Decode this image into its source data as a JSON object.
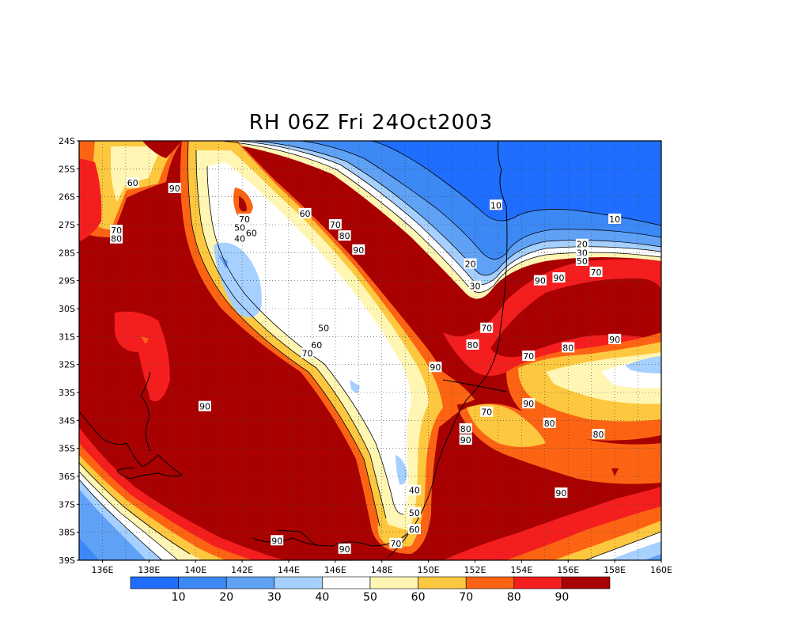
{
  "title": "RH 06Z Fri 24Oct2003",
  "map": {
    "lat_labels": [
      "24S",
      "25S",
      "26S",
      "27S",
      "28S",
      "29S",
      "30S",
      "31S",
      "32S",
      "33S",
      "34S",
      "35S",
      "36S",
      "37S",
      "38S",
      "39S"
    ],
    "lon_labels": [
      "136E",
      "138E",
      "140E",
      "142E",
      "144E",
      "146E",
      "148E",
      "150E",
      "152E",
      "154E",
      "156E",
      "158E",
      "160E"
    ],
    "grid": true,
    "contour_labels": [
      {
        "text": "90",
        "lon": 139.1,
        "lat": -25.7
      },
      {
        "text": "60",
        "lon": 137.3,
        "lat": -25.5
      },
      {
        "text": "70",
        "lon": 136.6,
        "lat": -27.2
      },
      {
        "text": "80",
        "lon": 136.6,
        "lat": -27.5
      },
      {
        "text": "70",
        "lon": 142.1,
        "lat": -26.8
      },
      {
        "text": "60",
        "lon": 144.7,
        "lat": -26.6
      },
      {
        "text": "50",
        "lon": 141.9,
        "lat": -27.1
      },
      {
        "text": "40",
        "lon": 141.9,
        "lat": -27.5
      },
      {
        "text": "60",
        "lon": 142.4,
        "lat": -27.3
      },
      {
        "text": "70",
        "lon": 146.0,
        "lat": -27.0
      },
      {
        "text": "80",
        "lon": 146.4,
        "lat": -27.4
      },
      {
        "text": "90",
        "lon": 147.0,
        "lat": -27.9
      },
      {
        "text": "10",
        "lon": 152.9,
        "lat": -26.3
      },
      {
        "text": "10",
        "lon": 158.0,
        "lat": -26.8
      },
      {
        "text": "20",
        "lon": 151.8,
        "lat": -28.4
      },
      {
        "text": "30",
        "lon": 152.0,
        "lat": -29.2
      },
      {
        "text": "20",
        "lon": 156.6,
        "lat": -27.7
      },
      {
        "text": "30",
        "lon": 156.6,
        "lat": -28.0
      },
      {
        "text": "50",
        "lon": 156.6,
        "lat": -28.3
      },
      {
        "text": "70",
        "lon": 157.2,
        "lat": -28.7
      },
      {
        "text": "90",
        "lon": 155.6,
        "lat": -28.9
      },
      {
        "text": "90",
        "lon": 154.8,
        "lat": -29.0
      },
      {
        "text": "50",
        "lon": 145.5,
        "lat": -30.7
      },
      {
        "text": "60",
        "lon": 145.2,
        "lat": -31.3
      },
      {
        "text": "70",
        "lon": 144.8,
        "lat": -31.6
      },
      {
        "text": "70",
        "lon": 152.5,
        "lat": -30.7
      },
      {
        "text": "80",
        "lon": 151.9,
        "lat": -31.3
      },
      {
        "text": "90",
        "lon": 158.0,
        "lat": -31.1
      },
      {
        "text": "80",
        "lon": 156.0,
        "lat": -31.4
      },
      {
        "text": "70",
        "lon": 154.3,
        "lat": -31.7
      },
      {
        "text": "90",
        "lon": 150.3,
        "lat": -32.1
      },
      {
        "text": "90",
        "lon": 154.3,
        "lat": -33.4
      },
      {
        "text": "70",
        "lon": 152.5,
        "lat": -33.7
      },
      {
        "text": "80",
        "lon": 155.2,
        "lat": -34.1
      },
      {
        "text": "80",
        "lon": 157.3,
        "lat": -34.5
      },
      {
        "text": "80",
        "lon": 151.6,
        "lat": -34.3
      },
      {
        "text": "90",
        "lon": 151.6,
        "lat": -34.7
      },
      {
        "text": "90",
        "lon": 140.4,
        "lat": -33.5
      },
      {
        "text": "40",
        "lon": 149.4,
        "lat": -36.5
      },
      {
        "text": "50",
        "lon": 149.4,
        "lat": -37.3
      },
      {
        "text": "60",
        "lon": 149.4,
        "lat": -37.9
      },
      {
        "text": "90",
        "lon": 155.7,
        "lat": -36.6
      },
      {
        "text": "70",
        "lon": 148.6,
        "lat": -38.4
      },
      {
        "text": "90",
        "lon": 143.5,
        "lat": -38.3
      },
      {
        "text": "90",
        "lon": 146.4,
        "lat": -38.6
      }
    ]
  },
  "colorbar": {
    "labels": [
      "10",
      "20",
      "30",
      "40",
      "50",
      "60",
      "70",
      "80",
      "90"
    ],
    "colors": [
      "#1f6eff",
      "#3c88f5",
      "#5fa2f5",
      "#a6d0ff",
      "#ffffff",
      "#fff6b3",
      "#fdc83f",
      "#fc6414",
      "#f51e1e",
      "#a90001"
    ]
  }
}
